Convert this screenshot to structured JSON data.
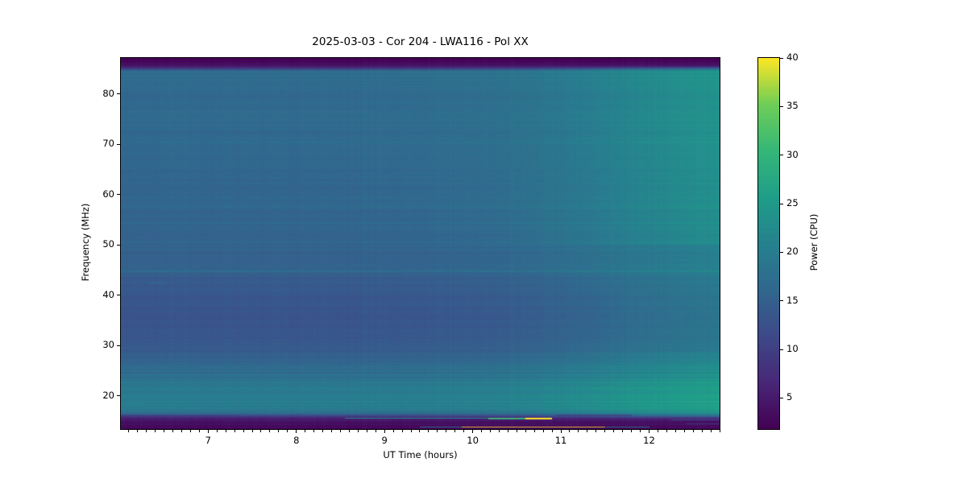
{
  "title": "2025-03-03 - Cor 204 - LWA116 - Pol XX",
  "xlabel": "UT Time (hours)",
  "ylabel": "Frequency (MHz)",
  "colorbar": {
    "label": "Power (CPU)",
    "ticks": [
      5,
      10,
      15,
      20,
      25,
      30,
      35,
      40
    ],
    "vmin": 1.8,
    "vmax": 40
  },
  "chart_data": {
    "type": "heatmap",
    "subtype": "radio-dynamic-spectrum",
    "title": "2025-03-03 - Cor 204 - LWA116 - Pol XX",
    "xlabel": "UT Time (hours)",
    "ylabel": "Frequency (MHz)",
    "x_range_hours": [
      6.01,
      12.8
    ],
    "y_range_mhz": [
      13.4,
      87.2
    ],
    "x_ticks": [
      7,
      8,
      9,
      10,
      11,
      12
    ],
    "x_minor_step": 0.1,
    "y_ticks": [
      20,
      30,
      40,
      50,
      60,
      70,
      80
    ],
    "colormap": "viridis",
    "colormap_stops": [
      [
        0.0,
        "#440154"
      ],
      [
        0.125,
        "#482878"
      ],
      [
        0.25,
        "#3e4989"
      ],
      [
        0.375,
        "#31688e"
      ],
      [
        0.5,
        "#26828e"
      ],
      [
        0.625,
        "#1f9e89"
      ],
      [
        0.75,
        "#35b779"
      ],
      [
        0.875,
        "#6ece58"
      ],
      [
        1.0,
        "#fde725"
      ]
    ],
    "freq_profile_mhz_power": [
      [
        13.4,
        2.3
      ],
      [
        14.0,
        2.8
      ],
      [
        14.6,
        3.2
      ],
      [
        15.1,
        4.2
      ],
      [
        15.55,
        6.0
      ],
      [
        15.95,
        9.5
      ],
      [
        16.35,
        14.5
      ],
      [
        16.8,
        18.0
      ],
      [
        17.5,
        19.6
      ],
      [
        19.0,
        19.8
      ],
      [
        21.0,
        19.3
      ],
      [
        23.0,
        18.4
      ],
      [
        25.0,
        17.0
      ],
      [
        27.0,
        15.4
      ],
      [
        29.0,
        14.1
      ],
      [
        31.0,
        13.4
      ],
      [
        34.0,
        13.0
      ],
      [
        38.0,
        13.1
      ],
      [
        41.0,
        13.5
      ],
      [
        43.0,
        13.9
      ],
      [
        44.2,
        14.2
      ],
      [
        44.75,
        16.6
      ],
      [
        45.3,
        15.2
      ],
      [
        47.0,
        15.0
      ],
      [
        50.0,
        15.2
      ],
      [
        54.0,
        15.5
      ],
      [
        58.0,
        15.7
      ],
      [
        63.0,
        16.0
      ],
      [
        68.0,
        16.3
      ],
      [
        73.0,
        16.4
      ],
      [
        78.0,
        16.2
      ],
      [
        81.0,
        16.4
      ],
      [
        83.0,
        16.6
      ],
      [
        83.9,
        16.2
      ],
      [
        84.45,
        17.8
      ],
      [
        84.9,
        11.0
      ],
      [
        85.35,
        6.5
      ],
      [
        85.8,
        4.0
      ],
      [
        86.4,
        2.6
      ],
      [
        87.2,
        1.9
      ]
    ],
    "time_boost_hours_power": [
      [
        6.0,
        0.0
      ],
      [
        7.0,
        0.15
      ],
      [
        8.0,
        0.1
      ],
      [
        9.0,
        0.35
      ],
      [
        9.7,
        0.7
      ],
      [
        10.2,
        1.1
      ],
      [
        10.7,
        2.0
      ],
      [
        11.1,
        3.0
      ],
      [
        11.5,
        4.3
      ],
      [
        11.9,
        5.3
      ],
      [
        12.3,
        6.3
      ],
      [
        12.8,
        7.3
      ]
    ],
    "features": [
      {
        "name": "rfi-teal-lead",
        "t0": 8.55,
        "t1": 10.18,
        "f": 15.5,
        "p": 22,
        "hpx": 1,
        "alpha": 0.9
      },
      {
        "name": "rfi-green-segment",
        "t0": 10.18,
        "t1": 10.6,
        "f": 15.5,
        "p": 31,
        "hpx": 2,
        "alpha": 0.95
      },
      {
        "name": "rfi-bright-yellow-burst",
        "t0": 10.6,
        "t1": 10.9,
        "f": 15.5,
        "p": 40,
        "hpx": 2,
        "alpha": 1.0
      },
      {
        "name": "faint-band-after-burst",
        "t0": 10.95,
        "t1": 11.8,
        "f": 16.2,
        "p": 8.5,
        "hpx": 2,
        "alpha": 0.6
      },
      {
        "name": "rfi-teal-lead-low",
        "t0": 9.4,
        "t1": 9.88,
        "f": 13.75,
        "p": 20,
        "hpx": 1,
        "alpha": 0.85
      },
      {
        "name": "rfi-long-yellow-line",
        "t0": 9.88,
        "t1": 11.51,
        "f": 13.75,
        "p": 40,
        "hpx": 1,
        "alpha": 0.8
      },
      {
        "name": "rfi-teal-tail-low",
        "t0": 11.51,
        "t1": 12.0,
        "f": 13.75,
        "p": 20,
        "hpx": 1,
        "alpha": 0.85
      },
      {
        "name": "teal-dash-left-a",
        "t0": 6.02,
        "t1": 6.3,
        "f": 18.4,
        "p": 21.5,
        "hpx": 1,
        "alpha": 0.9
      },
      {
        "name": "teal-dash-left-b",
        "t0": 6.02,
        "t1": 6.12,
        "f": 19.0,
        "p": 20.5,
        "hpx": 1,
        "alpha": 0.8
      },
      {
        "name": "teal-dash-42mhz",
        "t0": 6.33,
        "t1": 6.52,
        "f": 42.4,
        "p": 18.5,
        "hpx": 1,
        "alpha": 0.8
      },
      {
        "name": "right-end-streak-a",
        "t0": 12.25,
        "t1": 12.8,
        "f": 15.3,
        "p": 13,
        "hpx": 1,
        "alpha": 0.8
      },
      {
        "name": "right-end-streak-b",
        "t0": 12.42,
        "t1": 12.8,
        "f": 14.5,
        "p": 11,
        "hpx": 1,
        "alpha": 0.7
      },
      {
        "name": "faint-left-row-a",
        "t0": 6.01,
        "t1": 7.3,
        "f": 16.0,
        "p": 6.5,
        "hpx": 1,
        "alpha": 0.5
      },
      {
        "name": "faint-left-row-b",
        "t0": 7.6,
        "t1": 9.1,
        "f": 15.1,
        "p": 5.5,
        "hpx": 1,
        "alpha": 0.5
      }
    ],
    "texture": {
      "row_noise_amp": 0.45,
      "row_noise_amp_streaky": 0.85,
      "streaky_bands_mhz": [
        [
          16.3,
          26.0
        ],
        [
          81.5,
          85.0
        ]
      ],
      "strong_row_fraction": 0.07,
      "col_noise_amp": 0.5
    }
  }
}
